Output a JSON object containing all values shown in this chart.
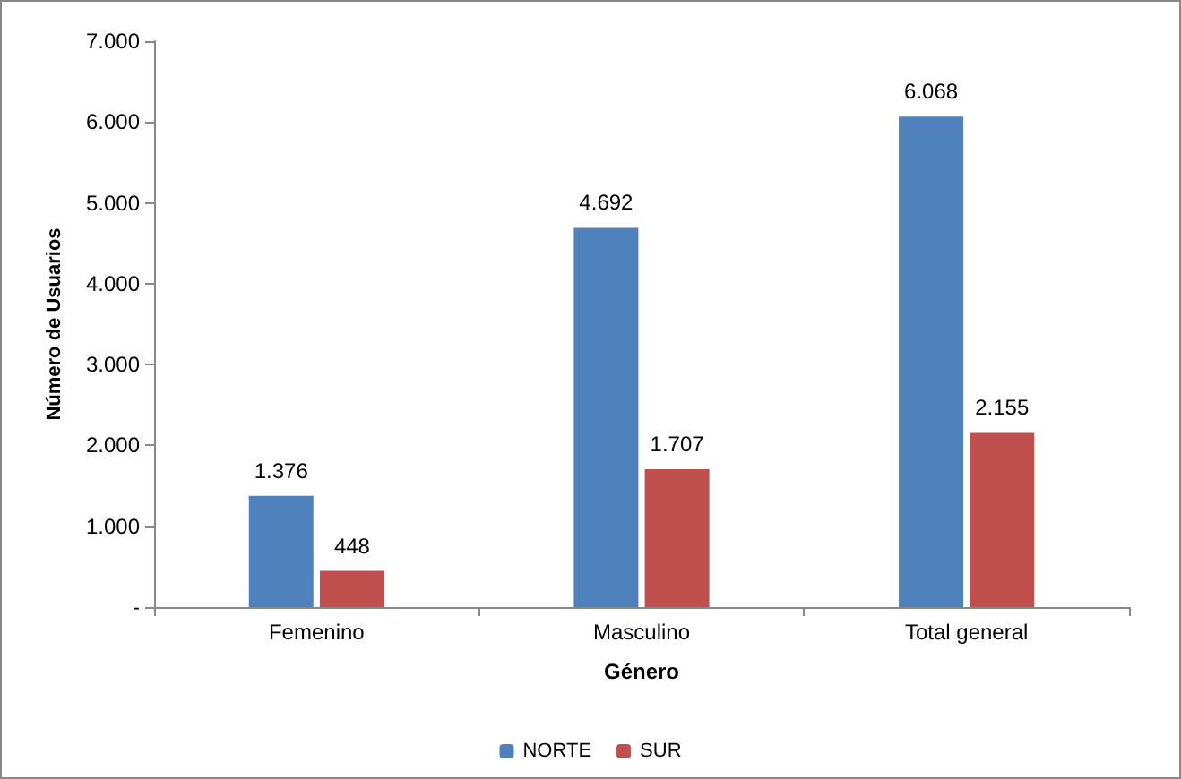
{
  "chart_data": {
    "type": "bar",
    "xlabel": "Género",
    "ylabel": "Número de Usuarios",
    "categories": [
      "Femenino",
      "Masculino",
      "Total general"
    ],
    "series": [
      {
        "name": "NORTE",
        "color": "#4f81bd",
        "values": [
          1376,
          4692,
          6068
        ],
        "value_labels": [
          "1.376",
          "4.692",
          "6.068"
        ]
      },
      {
        "name": "SUR",
        "color": "#c0504d",
        "values": [
          448,
          1707,
          2155
        ],
        "value_labels": [
          "448",
          "1.707",
          "2.155"
        ]
      }
    ],
    "ylim": [
      0,
      7000
    ],
    "yticks": [
      {
        "value": 0,
        "label": "-"
      },
      {
        "value": 1000,
        "label": "1.000"
      },
      {
        "value": 2000,
        "label": "2.000"
      },
      {
        "value": 3000,
        "label": "3.000"
      },
      {
        "value": 4000,
        "label": "4.000"
      },
      {
        "value": 5000,
        "label": "5.000"
      },
      {
        "value": 6000,
        "label": "6.000"
      },
      {
        "value": 7000,
        "label": "7.000"
      }
    ],
    "grid": false,
    "legend": "bottom"
  }
}
